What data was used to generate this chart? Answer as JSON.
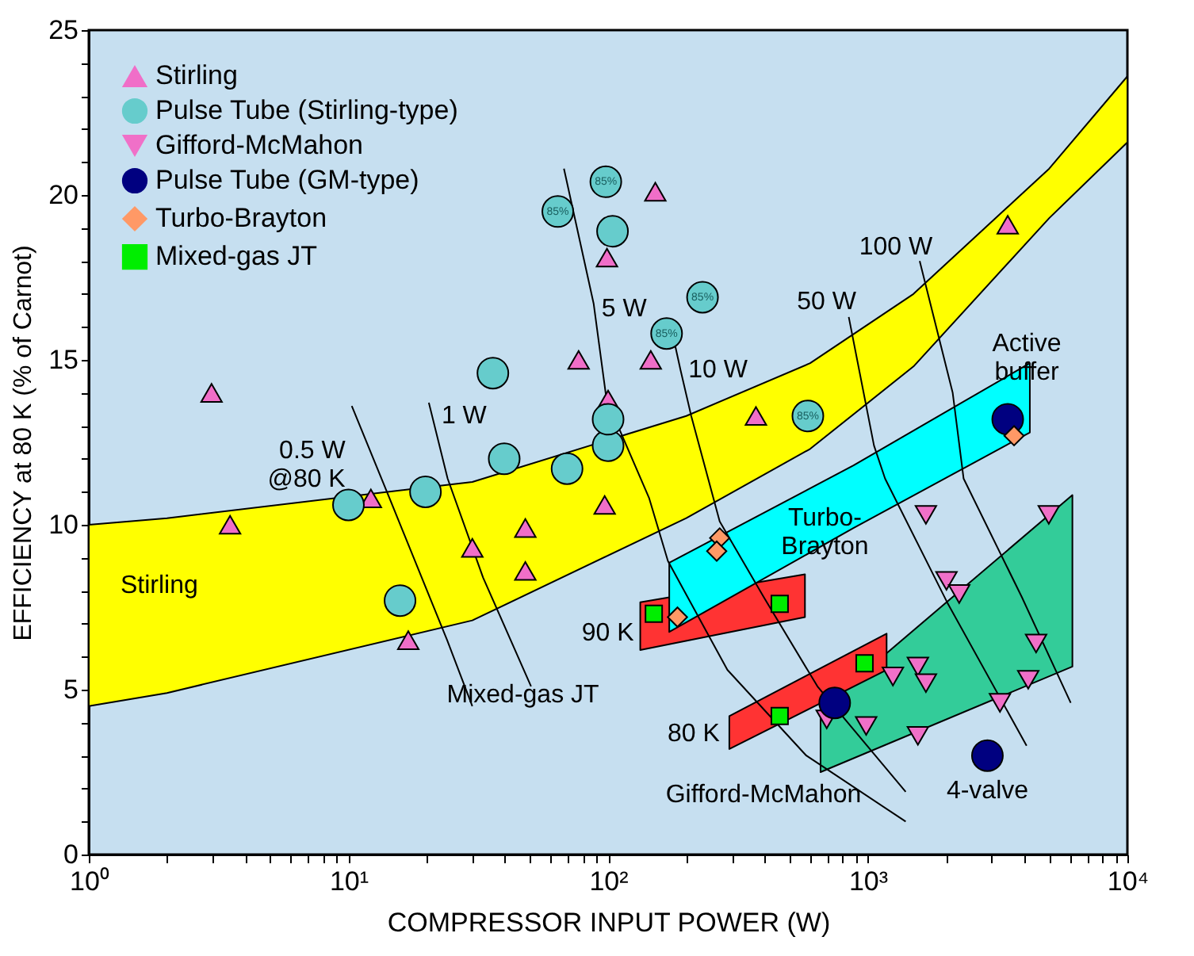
{
  "chart_data": {
    "type": "scatter",
    "xlabel": "COMPRESSOR INPUT POWER  (W)",
    "ylabel": "EFFICIENCY at 80 K  (% of Carnot)",
    "log": "x",
    "grid": false,
    "legend": "top left",
    "xlim": [
      1,
      10000
    ],
    "xticks": [
      {
        "value": 1,
        "label": "10⁰"
      },
      {
        "value": 2,
        "label": null
      },
      {
        "value": 3,
        "label": null
      },
      {
        "value": 4,
        "label": null
      },
      {
        "value": 5,
        "label": null
      },
      {
        "value": 6,
        "label": null
      },
      {
        "value": 7,
        "label": null
      },
      {
        "value": 8,
        "label": null
      },
      {
        "value": 9,
        "label": null
      },
      {
        "value": 10,
        "label": "10¹"
      },
      {
        "value": 20,
        "label": null
      },
      {
        "value": 30,
        "label": null
      },
      {
        "value": 40,
        "label": null
      },
      {
        "value": 50,
        "label": null
      },
      {
        "value": 60,
        "label": null
      },
      {
        "value": 70,
        "label": null
      },
      {
        "value": 80,
        "label": null
      },
      {
        "value": 90,
        "label": null
      },
      {
        "value": 100,
        "label": "10²"
      },
      {
        "value": 200,
        "label": null
      },
      {
        "value": 300,
        "label": null
      },
      {
        "value": 400,
        "label": null
      },
      {
        "value": 500,
        "label": null
      },
      {
        "value": 600,
        "label": null
      },
      {
        "value": 700,
        "label": null
      },
      {
        "value": 800,
        "label": null
      },
      {
        "value": 900,
        "label": null
      },
      {
        "value": 1000,
        "label": "10³"
      },
      {
        "value": 2000,
        "label": null
      },
      {
        "value": 3000,
        "label": null
      },
      {
        "value": 4000,
        "label": null
      },
      {
        "value": 5000,
        "label": null
      },
      {
        "value": 6000,
        "label": null
      },
      {
        "value": 7000,
        "label": null
      },
      {
        "value": 8000,
        "label": null
      },
      {
        "value": 9000,
        "label": null
      },
      {
        "value": 10000,
        "label": "10⁴"
      }
    ],
    "ylim": [
      0,
      25
    ],
    "yticks": [
      0,
      {
        "value": 1,
        "label": null
      },
      {
        "value": 2,
        "label": null
      },
      {
        "value": 3,
        "label": null
      },
      {
        "value": 4,
        "label": null
      },
      5,
      {
        "value": 6,
        "label": null
      },
      {
        "value": 7,
        "label": null
      },
      {
        "value": 8,
        "label": null
      },
      {
        "value": 9,
        "label": null
      },
      10,
      {
        "value": 11,
        "label": null
      },
      {
        "value": 12,
        "label": null
      },
      {
        "value": 13,
        "label": null
      },
      {
        "value": 14,
        "label": null
      },
      15,
      {
        "value": 16,
        "label": null
      },
      {
        "value": 17,
        "label": null
      },
      {
        "value": 18,
        "label": null
      },
      {
        "value": 19,
        "label": null
      },
      20,
      {
        "value": 21,
        "label": null
      },
      {
        "value": 22,
        "label": null
      },
      {
        "value": 23,
        "label": null
      },
      {
        "value": 24,
        "label": null
      },
      25
    ],
    "series": [
      {
        "type": "area",
        "color": "#ffff00",
        "x": [
          1,
          2,
          30,
          200,
          600,
          1500,
          5000,
          10000
        ],
        "values": [
          null,
          null,
          null,
          null,
          null,
          null,
          null,
          null
        ],
        "upper": [
          10,
          10.2,
          11.3,
          13.3,
          14.9,
          17.0,
          20.8,
          23.6
        ],
        "lower": [
          4.5,
          4.9,
          7.1,
          10.2,
          12.3,
          14.8,
          19.3,
          21.6
        ]
      },
      {
        "type": "area",
        "color": "#33cc99",
        "x": [
          658,
          6140
        ],
        "values": [
          null,
          null
        ],
        "upper": [
          4.4,
          10.9
        ],
        "lower": [
          2.5,
          5.7
        ]
      },
      {
        "type": "area",
        "color": "#ff3333",
        "x": [
          293,
          1182
        ],
        "values": [
          null,
          null
        ],
        "upper": [
          4.2,
          6.7
        ],
        "lower": [
          3.2,
          5.6
        ]
      },
      {
        "type": "area",
        "color": "#ff3333",
        "x": [
          133,
          573
        ],
        "values": [
          null,
          null
        ],
        "upper": [
          7.65,
          8.5
        ],
        "lower": [
          6.2,
          7.2
        ]
      },
      {
        "type": "area",
        "color": "#00ffff",
        "x": [
          172,
          881,
          4210
        ],
        "values": [
          null,
          null,
          null
        ],
        "upper": [
          8.85,
          11.8,
          14.9
        ],
        "lower": [
          6.75,
          9.9,
          12.8
        ]
      },
      {
        "type": "line",
        "color": "#000000",
        "x": [
          10.3,
          14.4,
          24,
          30
        ],
        "values": [
          13.6,
          10.8,
          6.5,
          4.5
        ]
      },
      {
        "type": "line",
        "color": "#000000",
        "x": [
          20.4,
          24.1,
          33,
          50.5
        ],
        "values": [
          13.7,
          11.4,
          8.4,
          5.1
        ]
      },
      {
        "type": "line",
        "color": "#000000",
        "x": [
          67.6,
          88,
          98.6,
          144,
          170,
          288,
          580,
          1400
        ],
        "values": [
          20.8,
          16.7,
          13.8,
          10.8,
          8.9,
          5.6,
          3.0,
          1.0
        ]
      },
      {
        "type": "line",
        "color": "#000000",
        "x": [
          177,
          190,
          209,
          269,
          398,
          640,
          1400
        ],
        "values": [
          15.8,
          14.7,
          13.3,
          10.1,
          7.8,
          5.1,
          1.9
        ]
      },
      {
        "type": "line",
        "color": "#000000",
        "x": [
          845,
          1057,
          1166,
          2037,
          4090
        ],
        "values": [
          16.3,
          12.4,
          11.4,
          7.6,
          3.3
        ]
      },
      {
        "type": "line",
        "color": "#000000",
        "x": [
          1585,
          2124,
          2340,
          3925,
          6050
        ],
        "values": [
          18.0,
          14.0,
          11.4,
          7.8,
          4.6
        ]
      },
      {
        "name": "Stirling",
        "color": "#f06ec8",
        "marker": "triangle",
        "x": [
          2.97,
          3.5,
          12.2,
          30,
          48,
          48,
          17,
          77,
          99,
          100,
          97,
          152,
          146,
          371,
          3460
        ],
        "values": [
          14,
          10,
          10.8,
          9.3,
          9.9,
          8.6,
          6.5,
          15,
          18.1,
          13.8,
          10.6,
          20.1,
          15,
          13.3,
          19.1
        ]
      },
      {
        "name": "Pulse Tube (Stirling-type)",
        "color": "#66cccc",
        "marker": "circle",
        "x": [
          10,
          19.8,
          15.8,
          36,
          39.8,
          69.5,
          100,
          100,
          104,
          64,
          98,
          231,
          168,
          588
        ],
        "values": [
          10.6,
          11.0,
          7.7,
          14.6,
          12.0,
          11.7,
          12.4,
          13.2,
          18.9,
          19.5,
          20.4,
          16.9,
          15.8,
          13.3
        ]
      },
      {
        "name": "Gifford-McMahon",
        "color": "#f070c8",
        "marker": "triangle-down",
        "x": [
          1675,
          4980,
          2010,
          2250,
          4450,
          1250,
          1560,
          1675,
          4150,
          3230,
          986,
          1560,
          695
        ],
        "values": [
          10.3,
          10.3,
          8.3,
          7.9,
          6.4,
          5.4,
          5.7,
          5.2,
          5.3,
          4.6,
          3.9,
          3.6,
          4.1
        ]
      },
      {
        "name": "Pulse Tube (GM-type)",
        "color": "#000080",
        "marker": "circle",
        "x": [
          746,
          2890,
          3460
        ],
        "values": [
          4.6,
          3.0,
          13.2
        ]
      },
      {
        "name": "Turbo-Brayton",
        "color": "#ff9966",
        "marker": "diamond",
        "x": [
          269,
          262,
          185,
          3660
        ],
        "values": [
          9.6,
          9.2,
          7.2,
          12.7
        ]
      },
      {
        "name": "Mixed-gas JT",
        "color": "#00ee00",
        "marker": "square",
        "x": [
          150,
          458,
          972,
          458
        ],
        "values": [
          7.3,
          7.6,
          5.8,
          4.2
        ]
      }
    ],
    "annotations": [
      {
        "text": "0.5 W\n@80 K",
        "x": 10.3,
        "y": 13.6
      },
      {
        "text": "1 W",
        "x": 20.4,
        "y": 13.7
      },
      {
        "text": "5 W",
        "x": 88,
        "y": 16.7
      },
      {
        "text": "10 W",
        "x": 190,
        "y": 14.7
      },
      {
        "text": "50 W",
        "x": 845,
        "y": 16.3
      },
      {
        "text": "100 W",
        "x": 1585,
        "y": 18.0
      },
      {
        "text": "Active\nbuffer",
        "x": 3460,
        "y": 13.2
      },
      {
        "text": "Turbo-\nBrayton",
        "x": 881,
        "y": 11.8
      },
      {
        "text": "Stirling",
        "x": 1,
        "y": 10
      },
      {
        "text": "90 K",
        "x": 133,
        "y": 6.2
      },
      {
        "text": "80 K",
        "x": 293,
        "y": 3.2
      },
      {
        "text": "Mixed-gas JT",
        "x": 133,
        "y": 6.2
      },
      {
        "text": "Gifford-McMahon",
        "x": 658,
        "y": 2.5
      },
      {
        "text": "4-valve",
        "x": 2890,
        "y": 3.0
      },
      {
        "text": "85%",
        "x": 64,
        "y": 19.5
      },
      {
        "text": "85%",
        "x": 98,
        "y": 20.4
      },
      {
        "text": "85%",
        "x": 231,
        "y": 16.9
      },
      {
        "text": "85%",
        "x": 168,
        "y": 15.8
      },
      {
        "text": "85%",
        "x": 588,
        "y": 13.3
      }
    ]
  }
}
